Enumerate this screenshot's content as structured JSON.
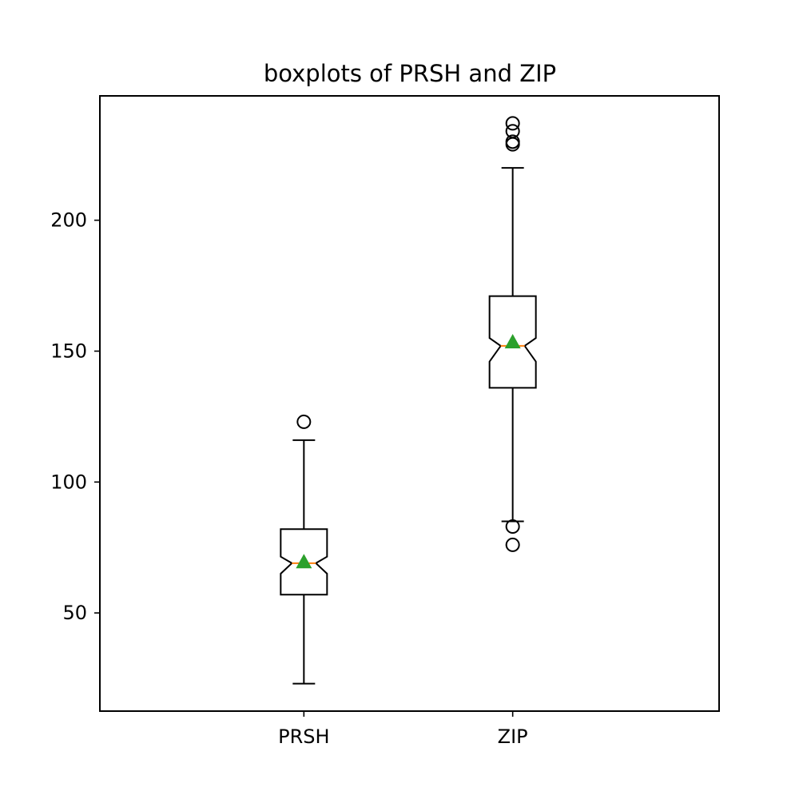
{
  "chart_data": {
    "type": "boxplot",
    "title": "boxplots of PRSH and ZIP",
    "xlabel": "",
    "ylabel": "",
    "ylim": [
      12.5,
      247.5
    ],
    "yticks": [
      50,
      100,
      150,
      200
    ],
    "grid": false,
    "notched": true,
    "show_means": true,
    "categories": [
      "PRSH",
      "ZIP"
    ],
    "boxes": [
      {
        "label": "PRSH",
        "whisker_low": 23,
        "q1": 57,
        "median": 69,
        "q3": 82,
        "whisker_high": 116,
        "notch_low": 65,
        "notch_high": 71.5,
        "mean": 69.5,
        "outliers": [
          123
        ]
      },
      {
        "label": "ZIP",
        "whisker_low": 85,
        "q1": 136,
        "median": 152,
        "q3": 171,
        "whisker_high": 220,
        "notch_low": 146,
        "notch_high": 155,
        "mean": 153.5,
        "outliers": [
          83,
          76,
          229,
          230,
          234,
          237
        ]
      }
    ],
    "colors": {
      "box": "#000000",
      "median": "#ff7f0e",
      "mean": "#2ca02c",
      "outlier": "#000000"
    }
  }
}
